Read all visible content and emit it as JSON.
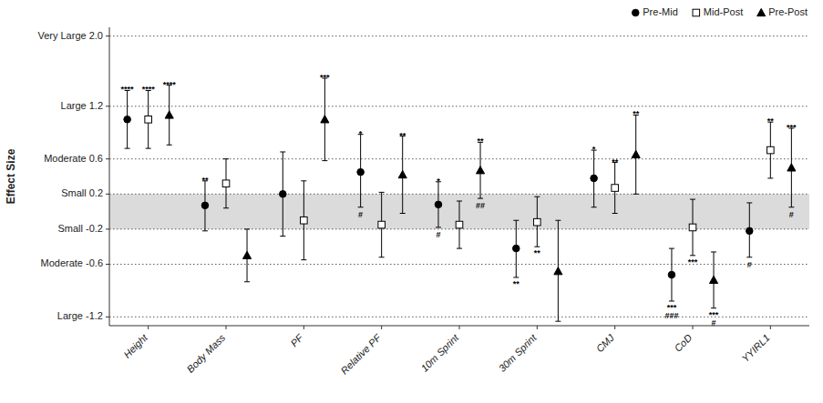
{
  "chart_data": {
    "type": "errorbar",
    "y_label": "Effect Size",
    "categories": [
      "Height",
      "Body Mass",
      "PF",
      "Relative PF",
      "10m Sprint",
      "30m Sprint",
      "CMJ",
      "CoD",
      "YYIRL1"
    ],
    "ylim": [
      -1.3,
      2.1
    ],
    "yticks": [
      {
        "value": -1.2,
        "label": "Large -1.2"
      },
      {
        "value": -0.6,
        "label": "Moderate -0.6"
      },
      {
        "value": -0.2,
        "label": "Small -0.2"
      },
      {
        "value": 0.2,
        "label": "Small 0.2"
      },
      {
        "value": 0.6,
        "label": "Moderate 0.6"
      },
      {
        "value": 1.2,
        "label": "Large 1.2"
      },
      {
        "value": 2.0,
        "label": "Very Large 2.0"
      }
    ],
    "grid": true,
    "legend": "upper right",
    "shaded_band": [
      -0.2,
      0.2
    ],
    "series": [
      {
        "name": "Pre-Mid",
        "marker": "circle",
        "color": "#000000",
        "values": [
          1.05,
          0.07,
          0.2,
          0.45,
          0.08,
          -0.42,
          0.38,
          -0.72,
          -0.22
        ],
        "ci_low": [
          0.72,
          -0.22,
          -0.28,
          0.05,
          -0.18,
          -0.75,
          0.05,
          -1.02,
          -0.52
        ],
        "ci_high": [
          1.38,
          0.35,
          0.68,
          0.88,
          0.34,
          -0.1,
          0.7,
          -0.42,
          0.1
        ],
        "annotations": [
          "****",
          "**",
          null,
          "*",
          "*",
          "**",
          "*",
          "***",
          null
        ],
        "hash_annotations": [
          null,
          null,
          null,
          "#",
          "#",
          null,
          null,
          "###",
          "#"
        ]
      },
      {
        "name": "Mid-Post",
        "marker": "square-open",
        "color": "#000000",
        "values": [
          1.05,
          0.32,
          -0.1,
          -0.15,
          -0.15,
          -0.12,
          0.27,
          -0.18,
          0.7
        ],
        "ci_low": [
          0.72,
          0.04,
          -0.55,
          -0.52,
          -0.42,
          -0.4,
          -0.02,
          -0.5,
          0.38
        ],
        "ci_high": [
          1.38,
          0.6,
          0.35,
          0.22,
          0.12,
          0.17,
          0.56,
          0.14,
          1.02
        ],
        "annotations": [
          "****",
          null,
          null,
          null,
          null,
          "**",
          "**",
          "***",
          "**"
        ],
        "hash_annotations": [
          null,
          null,
          null,
          null,
          null,
          null,
          null,
          null,
          null
        ]
      },
      {
        "name": "Pre-Post",
        "marker": "triangle",
        "color": "#000000",
        "values": [
          1.1,
          -0.5,
          1.05,
          0.42,
          0.47,
          -0.68,
          0.65,
          -0.78,
          0.5
        ],
        "ci_low": [
          0.76,
          -0.8,
          0.58,
          -0.02,
          0.15,
          -1.25,
          0.2,
          -1.1,
          0.05
        ],
        "ci_high": [
          1.44,
          -0.2,
          1.52,
          0.86,
          0.79,
          -0.1,
          1.1,
          -0.46,
          0.95
        ],
        "annotations": [
          "****",
          null,
          "***",
          "**",
          "**",
          null,
          "**",
          "***",
          "***"
        ],
        "hash_annotations": [
          null,
          null,
          null,
          null,
          "##",
          null,
          null,
          "#",
          "#"
        ]
      }
    ]
  }
}
